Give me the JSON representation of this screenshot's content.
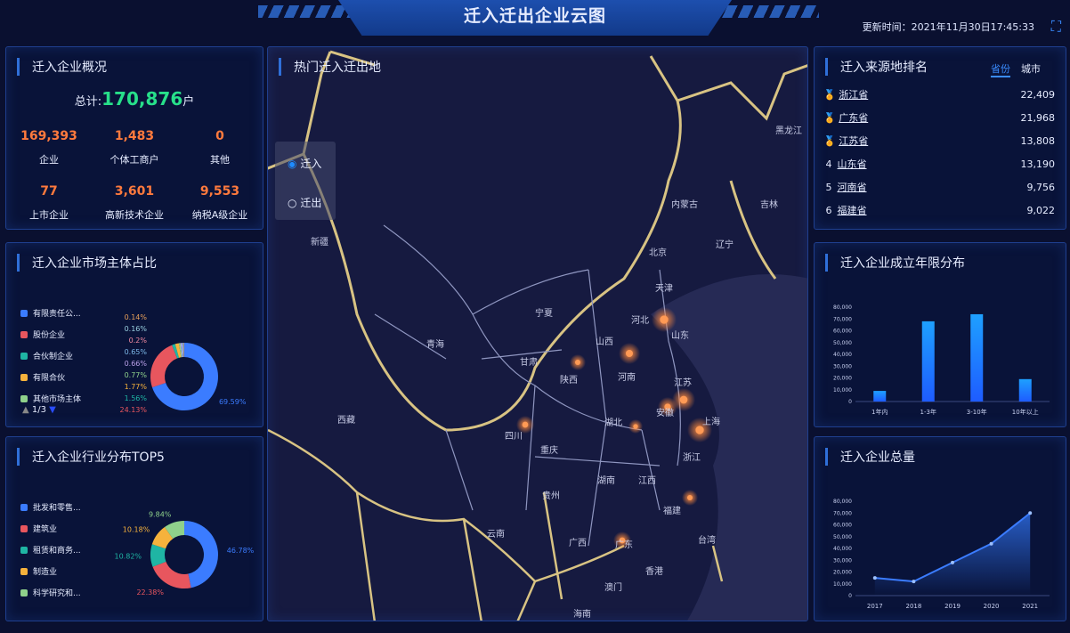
{
  "header": {
    "title": "迁入迁出企业云图",
    "update_time": "更新时间：2021年11月30日17:45:33",
    "fullscreen_icon": "expand-icon"
  },
  "overview": {
    "title": "迁入企业概况",
    "total_label": "总计:",
    "total_value": "170,876",
    "total_unit": "户",
    "stats": [
      {
        "value": "169,393",
        "label": "企业"
      },
      {
        "value": "1,483",
        "label": "个体工商户"
      },
      {
        "value": "0",
        "label": "其他"
      },
      {
        "value": "77",
        "label": "上市企业"
      },
      {
        "value": "3,601",
        "label": "高新技术企业"
      },
      {
        "value": "9,553",
        "label": "纳税A级企业"
      }
    ]
  },
  "market": {
    "title": "迁入企业市场主体占比",
    "legend": [
      "有限责任公...",
      "股份企业",
      "合伙制企业",
      "有限合伙",
      "其他市场主体"
    ],
    "pager": "1/3",
    "chart_data": {
      "type": "pie",
      "values": [
        69.59,
        24.13,
        1.56,
        1.77,
        0.77,
        0.66,
        0.65,
        0.2,
        0.16,
        0.14
      ],
      "labels": [
        "69.59%",
        "24.13%",
        "1.56%",
        "1.77%",
        "0.77%",
        "0.66%",
        "0.65%",
        "0.2%",
        "0.16%",
        "0.14%"
      ],
      "colors": [
        "#3b7cff",
        "#e8565e",
        "#1fb5a4",
        "#f6b23c",
        "#8fd18b",
        "#b9a0e8",
        "#7db8e8",
        "#f08aa0",
        "#9ad0e0",
        "#e8a05a"
      ]
    }
  },
  "industry": {
    "title": "迁入企业行业分布TOP5",
    "legend": [
      "批发和零售...",
      "建筑业",
      "租赁和商务...",
      "制造业",
      "科学研究和..."
    ],
    "chart_data": {
      "type": "pie",
      "values": [
        46.78,
        22.38,
        10.82,
        10.18,
        9.84
      ],
      "labels": [
        "46.78%",
        "22.38%",
        "10.82%",
        "10.18%",
        "9.84%"
      ],
      "colors": [
        "#3b7cff",
        "#e8565e",
        "#1fb5a4",
        "#f6b23c",
        "#8fd18b"
      ]
    }
  },
  "map": {
    "title": "热门迁入迁出地",
    "radio": [
      {
        "label": "迁入",
        "checked": true
      },
      {
        "label": "迁出",
        "checked": false
      }
    ],
    "provinces": [
      "新疆",
      "西藏",
      "青海",
      "甘肃",
      "宁夏",
      "内蒙古",
      "黑龙江",
      "吉林",
      "辽宁",
      "北京",
      "天津",
      "河北",
      "山西",
      "山东",
      "陕西",
      "河南",
      "江苏",
      "安徽",
      "上海",
      "湖北",
      "四川",
      "重庆",
      "浙江",
      "湖南",
      "江西",
      "贵州",
      "福建",
      "云南",
      "广西",
      "广东",
      "台湾",
      "香港",
      "澳门",
      "海南"
    ]
  },
  "ranking": {
    "title": "迁入来源地排名",
    "tabs": [
      "省份",
      "城市"
    ],
    "active_tab": "省份",
    "rows": [
      {
        "rank": "1",
        "name": "浙江省",
        "value": "22,409",
        "medal": "gold"
      },
      {
        "rank": "2",
        "name": "广东省",
        "value": "21,968",
        "medal": "silver"
      },
      {
        "rank": "3",
        "name": "江苏省",
        "value": "13,808",
        "medal": "bronze"
      },
      {
        "rank": "4",
        "name": "山东省",
        "value": "13,190"
      },
      {
        "rank": "5",
        "name": "河南省",
        "value": "9,756"
      },
      {
        "rank": "6",
        "name": "福建省",
        "value": "9,022"
      }
    ]
  },
  "age": {
    "title": "迁入企业成立年限分布",
    "chart_data": {
      "type": "bar",
      "categories": [
        "1年内",
        "1-3年",
        "3-10年",
        "10年以上"
      ],
      "values": [
        9000,
        68000,
        74000,
        19000
      ],
      "ylim": [
        0,
        80000
      ],
      "yticks": [
        "0",
        "10,000",
        "20,000",
        "30,000",
        "40,000",
        "50,000",
        "60,000",
        "70,000",
        "80,000"
      ],
      "color": "#1e8bff"
    }
  },
  "total": {
    "title": "迁入企业总量",
    "chart_data": {
      "type": "area",
      "categories": [
        "2017",
        "2018",
        "2019",
        "2020",
        "2021"
      ],
      "values": [
        15000,
        12000,
        28000,
        44000,
        70000
      ],
      "ylim": [
        0,
        80000
      ],
      "yticks": [
        "0",
        "10,000",
        "20,000",
        "30,000",
        "40,000",
        "50,000",
        "60,000",
        "70,000",
        "80,000"
      ],
      "color": "#3b7cff"
    }
  }
}
